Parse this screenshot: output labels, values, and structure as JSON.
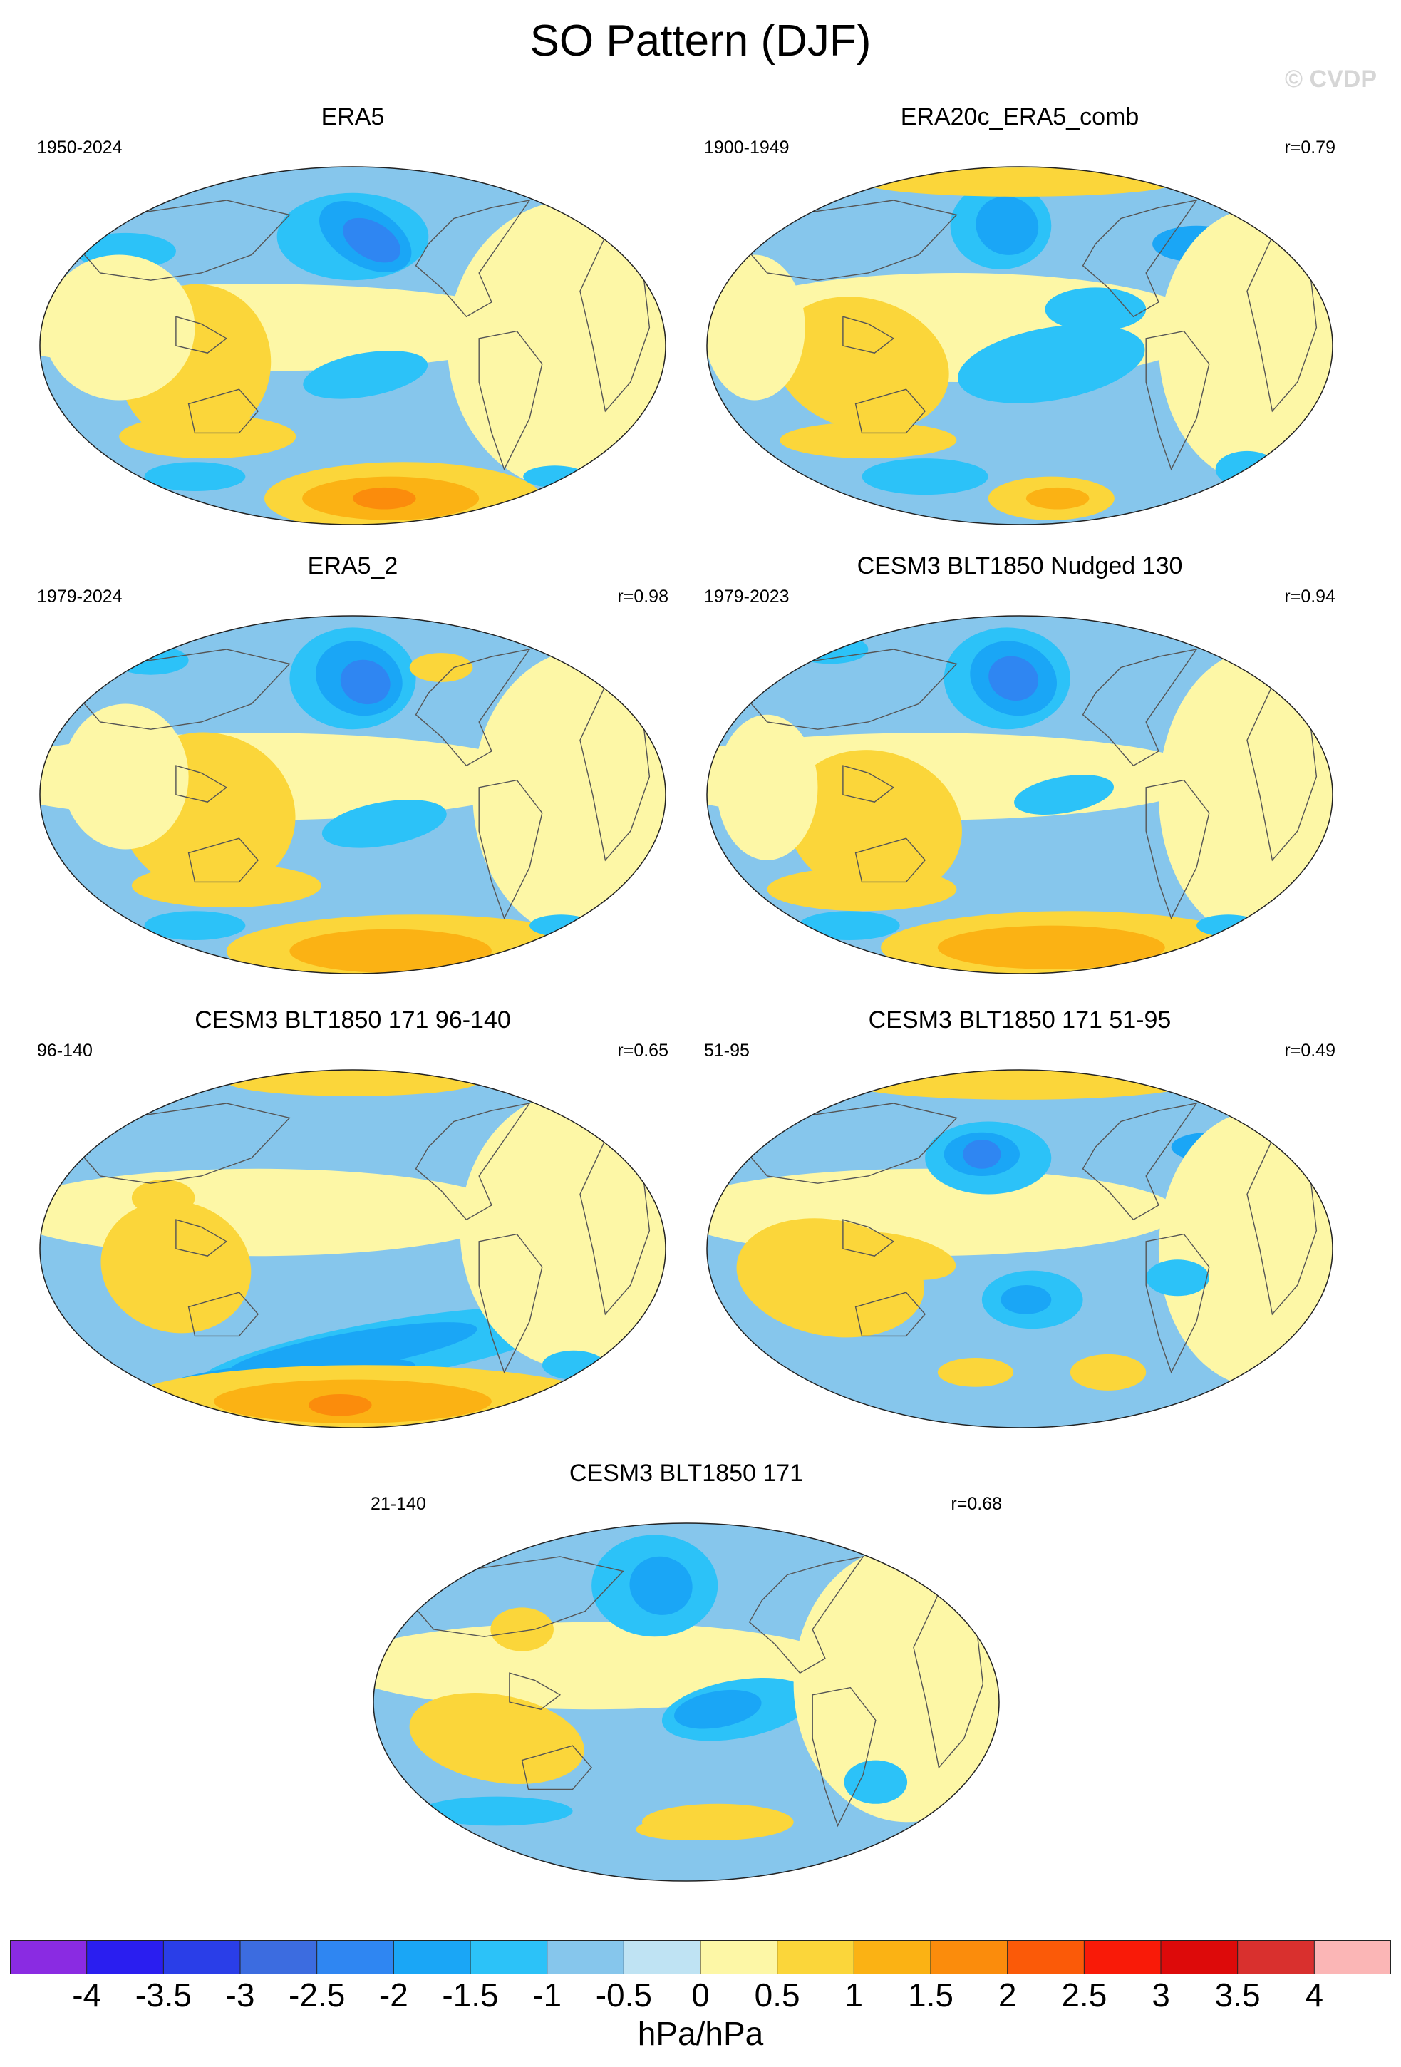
{
  "title": "SO Pattern (DJF)",
  "watermark": "© CVDP",
  "panels": [
    {
      "name": "ERA5",
      "years": "1950-2024",
      "r": ""
    },
    {
      "name": "ERA20c_ERA5_comb",
      "years": "1900-1949",
      "r": "r=0.79"
    },
    {
      "name": "ERA5_2",
      "years": "1979-2024",
      "r": "r=0.98"
    },
    {
      "name": "CESM3 BLT1850 Nudged 130",
      "years": "1979-2023",
      "r": "r=0.94"
    },
    {
      "name": "CESM3 BLT1850 171 96-140",
      "years": "96-140",
      "r": "r=0.65"
    },
    {
      "name": "CESM3 BLT1850 171 51-95",
      "years": "51-95",
      "r": "r=0.49"
    },
    {
      "name": "CESM3 BLT1850 171",
      "years": "21-140",
      "r": "r=0.68"
    }
  ],
  "colorbar": {
    "labels": [
      "-4",
      "-3.5",
      "-3",
      "-2.5",
      "-2",
      "-1.5",
      "-1",
      "-0.5",
      "0",
      "0.5",
      "1",
      "1.5",
      "2",
      "2.5",
      "3",
      "3.5",
      "4"
    ],
    "colors": [
      "#8a2be2",
      "#2a1ef0",
      "#2a3ee8",
      "#3c6ce0",
      "#2f86f2",
      "#1aa6f6",
      "#2cc2f8",
      "#86c6ec",
      "#bfe3f3",
      "#fdf7a6",
      "#fbd63a",
      "#fbb214",
      "#fb8c0c",
      "#fb5a08",
      "#f91a08",
      "#dd0a0a",
      "#d9302e",
      "#fbb6b6"
    ],
    "units": "hPa/hPa"
  }
}
